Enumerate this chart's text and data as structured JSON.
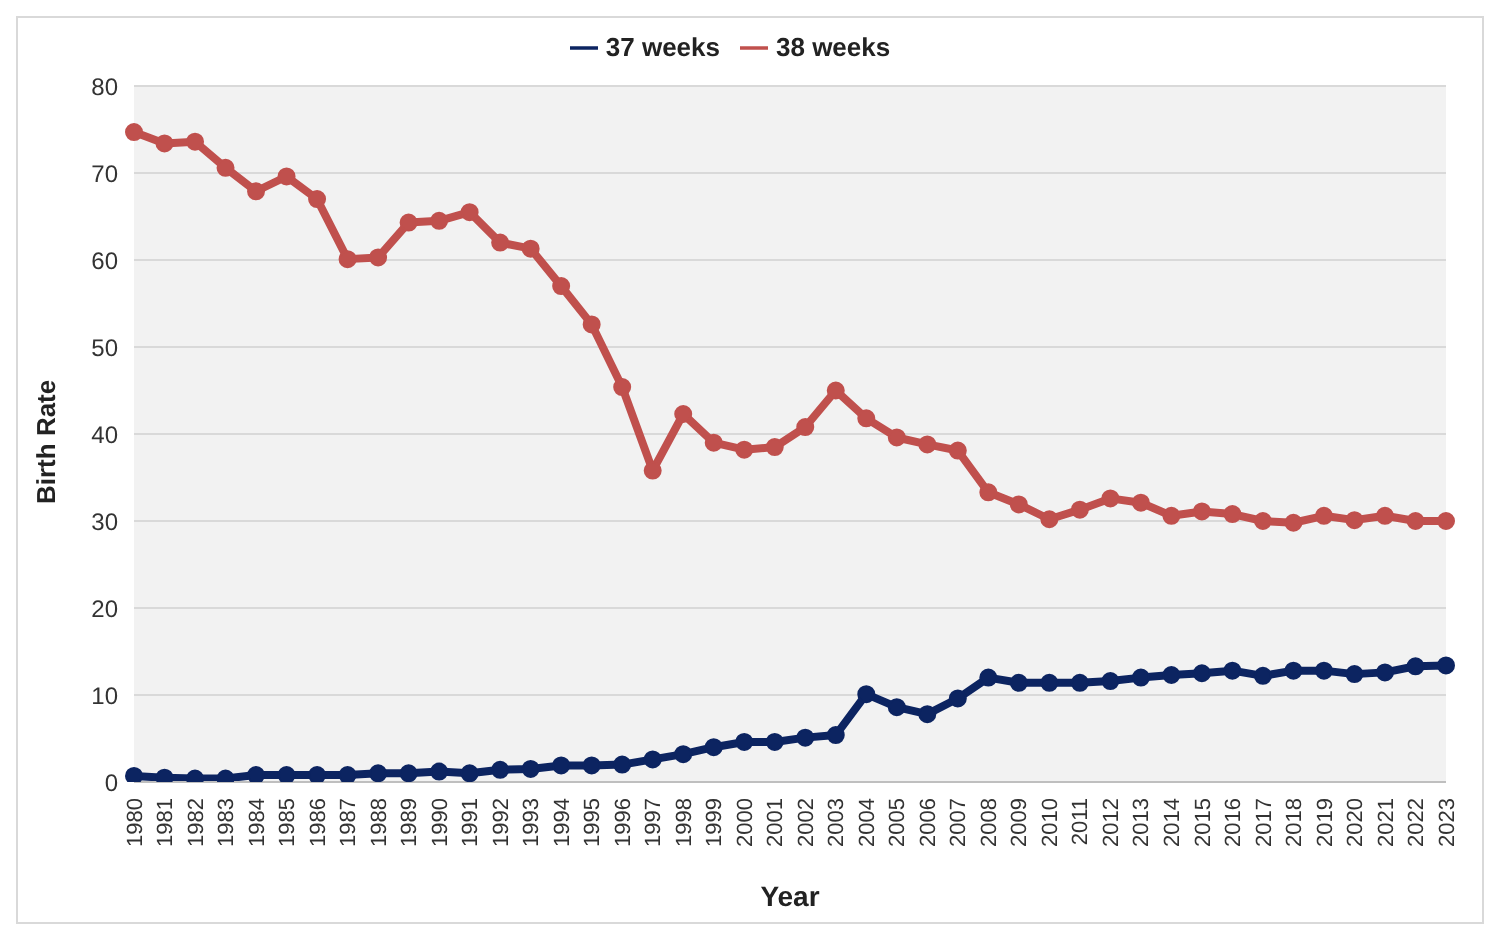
{
  "chart_data": {
    "type": "line",
    "xlabel": "Year",
    "ylabel": "Birth Rate",
    "categories": [
      "1980",
      "1981",
      "1982",
      "1983",
      "1984",
      "1985",
      "1986",
      "1987",
      "1988",
      "1989",
      "1990",
      "1991",
      "1992",
      "1993",
      "1994",
      "1995",
      "1996",
      "1997",
      "1998",
      "1999",
      "2000",
      "2001",
      "2002",
      "2003",
      "2004",
      "2005",
      "2006",
      "2007",
      "2008",
      "2009",
      "2010",
      "2011",
      "2012",
      "2013",
      "2014",
      "2015",
      "2016",
      "2017",
      "2018",
      "2019",
      "2020",
      "2021",
      "2022",
      "2023"
    ],
    "series": [
      {
        "name": "37 weeks",
        "color": "#0c2461",
        "values": [
          0.7,
          0.5,
          0.4,
          0.4,
          0.8,
          0.8,
          0.8,
          0.8,
          1.0,
          1.0,
          1.2,
          1.0,
          1.4,
          1.5,
          1.9,
          1.9,
          2.0,
          2.6,
          3.2,
          4.0,
          4.6,
          4.6,
          5.1,
          5.4,
          10.1,
          8.6,
          7.8,
          9.6,
          12.0,
          11.4,
          11.4,
          11.4,
          11.6,
          12.0,
          12.3,
          12.5,
          12.8,
          12.2,
          12.8,
          12.8,
          12.4,
          12.6,
          13.3,
          13.4
        ]
      },
      {
        "name": "38 weeks",
        "color": "#c0504d",
        "values": [
          74.7,
          73.4,
          73.6,
          70.6,
          67.9,
          69.6,
          67.0,
          60.1,
          60.3,
          64.3,
          64.5,
          65.5,
          62.0,
          61.3,
          57.0,
          52.6,
          45.4,
          35.8,
          42.3,
          39.0,
          38.2,
          38.5,
          40.8,
          45.0,
          41.8,
          39.6,
          38.8,
          38.1,
          33.3,
          31.9,
          30.2,
          31.3,
          32.6,
          32.1,
          30.6,
          31.1,
          30.8,
          30.0,
          29.8,
          30.6,
          30.1,
          30.6,
          30.0,
          30.0
        ]
      }
    ],
    "ylim": [
      0,
      80
    ],
    "yticks": [
      0,
      10,
      20,
      30,
      40,
      50,
      60,
      70,
      80
    ],
    "grid": "y",
    "legend": "top",
    "marker": "circle",
    "line_style": "solid"
  }
}
